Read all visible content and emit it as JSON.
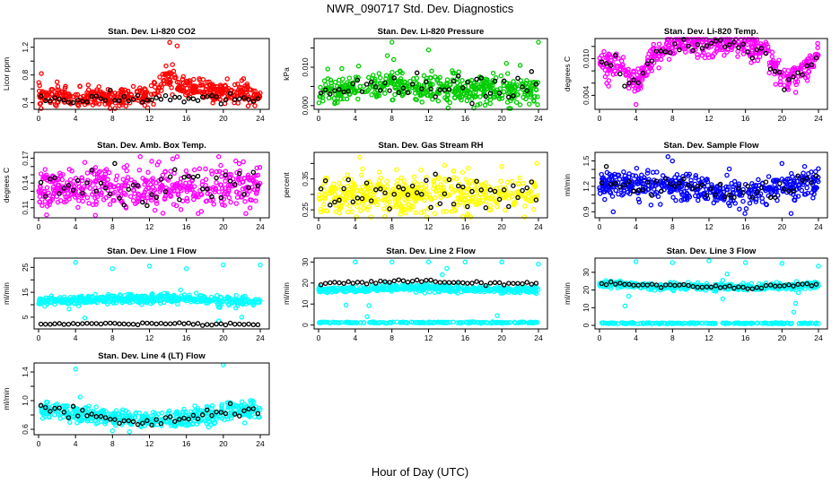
{
  "title": "NWR_090717  Std. Dev. Diagnostics",
  "xlabel": "Hour of Day (UTC)",
  "chart_data": [
    {
      "type": "scatter",
      "title": "Stan. Dev. Li-820 CO2",
      "ylabel": "Licor ppm",
      "color": "#ff0000",
      "xlim": [
        0,
        24
      ],
      "ylim": [
        0.33,
        1.3
      ],
      "yticks": [
        0.4,
        0.6,
        0.8,
        1.0,
        1.2
      ],
      "ylabels": [
        "0.4",
        "",
        "0.8",
        "",
        "1.2"
      ],
      "trend": [
        0.5,
        0.48,
        0.47,
        0.47,
        0.48,
        0.48,
        0.5,
        0.75,
        0.62,
        0.58,
        0.55,
        0.55,
        0.5
      ],
      "spread": 0.07,
      "black_trend": [
        0.45,
        0.45,
        0.44,
        0.45,
        0.45,
        0.45,
        0.46,
        0.47,
        0.47,
        0.45,
        0.45,
        0.45,
        0.46
      ],
      "black_spread": 0.04,
      "extra": [
        [
          0.3,
          0.82
        ],
        [
          14.2,
          1.27
        ],
        [
          15,
          1.22
        ],
        [
          13.8,
          0.93
        ],
        [
          14.5,
          0.95
        ],
        [
          22,
          0.72
        ],
        [
          2,
          0.7
        ]
      ],
      "extra_line": null
    },
    {
      "type": "scatter",
      "title": "Stan. Dev. Li-820 Pressure",
      "ylabel": "kPa",
      "color": "#00cc00",
      "xlim": [
        0,
        24
      ],
      "ylim": [
        -0.0005,
        0.017
      ],
      "yticks": [
        0,
        0.005,
        0.01,
        0.015
      ],
      "ylabels": [
        "0.000",
        "",
        "0.010",
        ""
      ],
      "trend": [
        0.004,
        0.004,
        0.0045,
        0.005,
        0.005,
        0.0045,
        0.0045,
        0.0045,
        0.0045,
        0.0045,
        0.004,
        0.004,
        0.004
      ],
      "spread": 0.0018,
      "black_trend": [
        0.0045,
        0.004,
        0.0045,
        0.005,
        0.0055,
        0.0045,
        0.004,
        0.004,
        0.004,
        0.004,
        0.004,
        0.004,
        0.005
      ],
      "black_spread": 0.0018,
      "extra": [
        [
          8,
          0.0165
        ],
        [
          12,
          0.0145
        ],
        [
          24,
          0.0165
        ],
        [
          7.5,
          0.013
        ],
        [
          1,
          0.0095
        ],
        [
          20.5,
          0.011
        ],
        [
          22,
          0.0105
        ],
        [
          8.2,
          0.012
        ]
      ],
      "extra_line": null
    },
    {
      "type": "scatter",
      "title": "Stan. Dev. Li-820 Temp.",
      "ylabel": "degrees C",
      "color": "#ff00ff",
      "xlim": [
        0,
        24
      ],
      "ylim": [
        0.002,
        0.013
      ],
      "yticks": [
        0.004,
        0.006,
        0.008,
        0.01,
        0.012
      ],
      "ylabels": [
        "0.004",
        "",
        "",
        "0.010",
        ""
      ],
      "trend": [
        0.0095,
        0.009,
        0.006,
        0.0105,
        0.0122,
        0.0123,
        0.0123,
        0.0123,
        0.0122,
        0.0115,
        0.0068,
        0.0075,
        0.0105
      ],
      "spread": 0.001,
      "black_trend": [
        0.0095,
        0.0088,
        0.0055,
        0.0105,
        0.012,
        0.0121,
        0.0121,
        0.0121,
        0.012,
        0.011,
        0.0065,
        0.0072,
        0.0108
      ],
      "black_spread": 0.0007,
      "extra": [
        [
          4,
          0.0025
        ],
        [
          1,
          0.0055
        ],
        [
          21.5,
          0.0045
        ],
        [
          6.5,
          0.0085
        ]
      ],
      "extra_line": null
    },
    {
      "type": "scatter",
      "title": "Stan. Dev. Amb. Box Temp.",
      "ylabel": "degrees C",
      "color": "#ff00ff",
      "xlim": [
        0,
        24
      ],
      "ylim": [
        0.1,
        0.175
      ],
      "yticks": [
        0.11,
        0.12,
        0.13,
        0.14,
        0.15,
        0.16,
        0.17
      ],
      "ylabels": [
        "0.11",
        "",
        "",
        "0.14",
        "",
        "",
        "0.17"
      ],
      "trend": [
        0.133,
        0.133,
        0.133,
        0.133,
        0.133,
        0.134,
        0.134,
        0.134,
        0.134,
        0.133,
        0.133,
        0.133,
        0.133
      ],
      "spread": 0.013,
      "black_trend": [
        0.133,
        0.132,
        0.132,
        0.133,
        0.133,
        0.133,
        0.133,
        0.133,
        0.133,
        0.133,
        0.132,
        0.132,
        0.133
      ],
      "black_spread": 0.011,
      "extra": [
        [
          11,
          0.172
        ],
        [
          15,
          0.172
        ],
        [
          19.5,
          0.172
        ],
        [
          5,
          0.165
        ]
      ],
      "extra_line": null
    },
    {
      "type": "scatter",
      "title": "Stan. Dev. Gas Stream RH",
      "ylabel": "percent",
      "color": "#ffff00",
      "xlim": [
        0,
        24
      ],
      "ylim": [
        0.23,
        0.43
      ],
      "yticks": [
        0.25,
        0.3,
        0.35,
        0.4
      ],
      "ylabels": [
        "0.25",
        "",
        "0.35",
        ""
      ],
      "trend": [
        0.3,
        0.3,
        0.3,
        0.3,
        0.3,
        0.3,
        0.3,
        0.3,
        0.3,
        0.3,
        0.3,
        0.3,
        0.3
      ],
      "spread": 0.03,
      "black_trend": [
        0.3,
        0.3,
        0.3,
        0.3,
        0.3,
        0.3,
        0.3,
        0.3,
        0.3,
        0.3,
        0.3,
        0.3,
        0.3
      ],
      "black_spread": 0.03,
      "extra": [
        [
          4.5,
          0.42
        ],
        [
          23.8,
          0.4
        ],
        [
          20,
          0.39
        ],
        [
          8.5,
          0.38
        ]
      ],
      "extra_line": null
    },
    {
      "type": "scatter",
      "title": "Stan. Dev. Sample Flow",
      "ylabel": "ml/min",
      "color": "#0000ff",
      "xlim": [
        0,
        24
      ],
      "ylim": [
        0.85,
        1.58
      ],
      "yticks": [
        0.9,
        1.0,
        1.1,
        1.2,
        1.3,
        1.4,
        1.5
      ],
      "ylabels": [
        "0.9",
        "",
        "",
        "1.2",
        "",
        "",
        "1.5"
      ],
      "trend": [
        1.22,
        1.22,
        1.22,
        1.2,
        1.2,
        1.18,
        1.16,
        1.12,
        1.12,
        1.15,
        1.2,
        1.22,
        1.24
      ],
      "spread": 0.08,
      "black_trend": [
        1.22,
        1.22,
        1.22,
        1.2,
        1.2,
        1.18,
        1.16,
        1.13,
        1.12,
        1.15,
        1.2,
        1.22,
        1.24
      ],
      "black_spread": 0.06,
      "extra": [
        [
          7.5,
          1.55
        ],
        [
          20,
          1.47
        ],
        [
          1.5,
          0.9
        ],
        [
          21,
          0.88
        ],
        [
          8,
          1.5
        ]
      ],
      "extra_line": null
    },
    {
      "type": "scatter",
      "title": "Stan. Dev. Line 1 Flow",
      "ylabel": "ml/min",
      "color": "#00ffff",
      "xlim": [
        0,
        24
      ],
      "ylim": [
        1,
        28
      ],
      "yticks": [
        5,
        10,
        15,
        20,
        25
      ],
      "ylabels": [
        "5",
        "",
        "15",
        "",
        "25"
      ],
      "trend": [
        11.5,
        11.5,
        11.8,
        12,
        12,
        12.2,
        12.3,
        12.5,
        12.5,
        12.2,
        11.5,
        11.5,
        11.5
      ],
      "spread": 0.9,
      "black_trend": [
        2.2,
        2.2,
        2.3,
        2.4,
        2.4,
        2.4,
        2.5,
        2.5,
        2.4,
        2.3,
        2.2,
        2.2,
        2.3
      ],
      "black_spread": 0.2,
      "extra": [
        [
          4,
          27
        ],
        [
          8,
          24.5
        ],
        [
          12,
          25.5
        ],
        [
          16,
          24.5
        ],
        [
          20,
          26
        ],
        [
          24,
          26
        ],
        [
          5,
          4.7
        ],
        [
          22,
          5
        ],
        [
          3.3,
          8.3
        ],
        [
          19.5,
          9
        ],
        [
          19.5,
          3.5
        ]
      ],
      "extra_line": null
    },
    {
      "type": "scatter",
      "title": "Stan. Dev. Line 2 Flow",
      "ylabel": "ml/min",
      "color": "#00ffff",
      "xlim": [
        0,
        24
      ],
      "ylim": [
        -1,
        31
      ],
      "yticks": [
        0,
        10,
        20,
        30
      ],
      "ylabels": [
        "0",
        "10",
        "20",
        "30"
      ],
      "trend": [
        17,
        17,
        17,
        17.5,
        17.5,
        17.5,
        17.5,
        17.5,
        17,
        17,
        16.8,
        16.8,
        16.8
      ],
      "spread": 0.8,
      "black_trend": [
        19.5,
        20,
        20.2,
        20.5,
        20.7,
        20.8,
        20.8,
        20.5,
        20,
        19.8,
        19.7,
        19.8,
        19.8
      ],
      "black_spread": 0.4,
      "extra": [
        [
          4,
          30
        ],
        [
          8,
          30
        ],
        [
          12,
          30
        ],
        [
          16,
          30
        ],
        [
          20,
          30
        ],
        [
          24,
          29
        ],
        [
          3,
          9.5
        ],
        [
          5.5,
          9.3
        ],
        [
          5.3,
          4
        ],
        [
          19.5,
          4.5
        ],
        [
          14,
          27
        ],
        [
          13.5,
          24
        ]
      ],
      "extra_line": 1.2
    },
    {
      "type": "scatter",
      "title": "Stan. Dev. Line 3 Flow",
      "ylabel": "ml/min",
      "color": "#00ffff",
      "xlim": [
        0,
        24
      ],
      "ylim": [
        -1,
        37
      ],
      "yticks": [
        0,
        10,
        20,
        30
      ],
      "ylabels": [
        "0",
        "10",
        "20",
        "30"
      ],
      "trend": [
        23,
        23.5,
        22.5,
        22,
        22,
        22,
        22,
        21.5,
        21.5,
        21.5,
        22,
        22.5,
        23
      ],
      "spread": 0.9,
      "black_trend": [
        23.5,
        24,
        23,
        22.5,
        22.5,
        22.5,
        22,
        21.5,
        21.5,
        21.5,
        22.5,
        23,
        23.5
      ],
      "black_spread": 0.5,
      "extra": [
        [
          4,
          36
        ],
        [
          8,
          35.5
        ],
        [
          12,
          36.5
        ],
        [
          16,
          35.5
        ],
        [
          20,
          35
        ],
        [
          24,
          33.5
        ],
        [
          2.8,
          11
        ],
        [
          3.2,
          16.5
        ],
        [
          14,
          29
        ],
        [
          13.5,
          25.5
        ],
        [
          21.5,
          12.5
        ],
        [
          21.3,
          7.5
        ],
        [
          21.8,
          18.5
        ],
        [
          13.5,
          15
        ]
      ],
      "extra_line": 1.2
    },
    {
      "type": "scatter",
      "title": "Stan. Dev. Line 4 (LT) Flow",
      "ylabel": "ml/min",
      "color": "#00ffff",
      "xlim": [
        0,
        24
      ],
      "ylim": [
        0.55,
        1.5
      ],
      "yticks": [
        0.6,
        0.8,
        1.0,
        1.2,
        1.4
      ],
      "ylabels": [
        "0.6",
        "",
        "1.0",
        "",
        "1.4"
      ],
      "trend": [
        0.88,
        0.85,
        0.82,
        0.8,
        0.76,
        0.72,
        0.72,
        0.74,
        0.76,
        0.8,
        0.84,
        0.86,
        0.88
      ],
      "spread": 0.06,
      "black_trend": [
        0.9,
        0.86,
        0.8,
        0.78,
        0.74,
        0.7,
        0.7,
        0.72,
        0.74,
        0.78,
        0.84,
        0.86,
        0.88
      ],
      "black_spread": 0.04,
      "extra": [
        [
          4,
          1.44
        ],
        [
          20,
          1.5
        ],
        [
          4.5,
          1.05
        ],
        [
          8,
          0.58
        ]
      ],
      "extra_line": null
    }
  ],
  "xticks": [
    0,
    4,
    8,
    12,
    16,
    20,
    24
  ]
}
